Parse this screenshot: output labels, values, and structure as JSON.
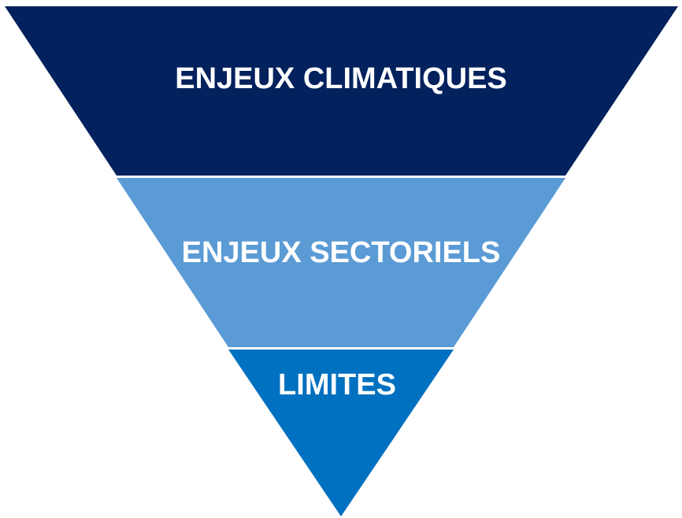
{
  "diagram": {
    "type": "inverted-pyramid",
    "levels": [
      {
        "label": "ENJEUX CLIMATIQUES",
        "color": "#03215D"
      },
      {
        "label": "ENJEUX SECTORIELS",
        "color": "#5B9BD5"
      },
      {
        "label": "LIMITES",
        "color": "#0070C0"
      }
    ]
  }
}
